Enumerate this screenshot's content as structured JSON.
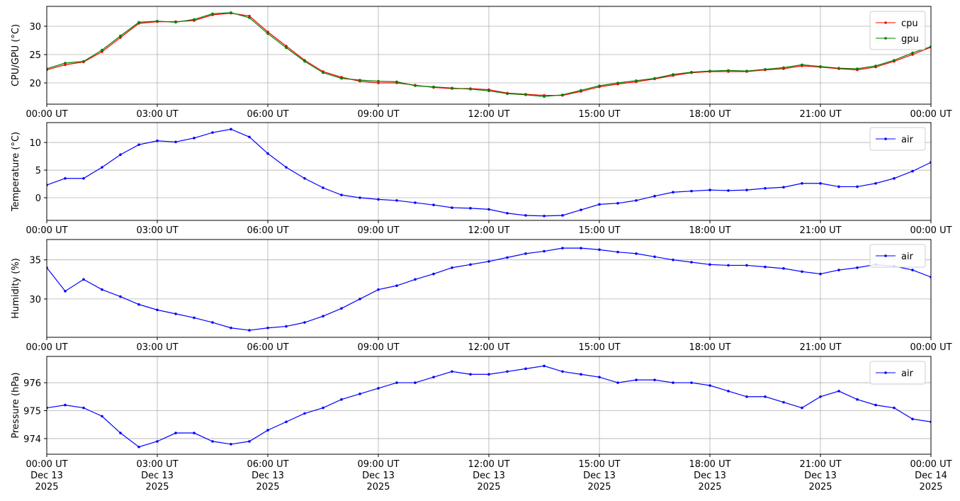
{
  "chart_data": [
    {
      "type": "line",
      "ylabel": "CPU/GPU (°C)",
      "x": [
        0,
        0.5,
        1,
        1.5,
        2,
        2.5,
        3,
        3.5,
        4,
        4.5,
        5,
        5.5,
        6,
        6.5,
        7,
        7.5,
        8,
        8.5,
        9,
        9.5,
        10,
        10.5,
        11,
        11.5,
        12,
        12.5,
        13,
        13.5,
        14,
        14.5,
        15,
        15.5,
        16,
        16.5,
        17,
        17.5,
        18,
        18.5,
        19,
        19.5,
        20,
        20.5,
        21,
        21.5,
        22,
        22.5,
        23,
        23.5,
        24
      ],
      "xlim": [
        0,
        24
      ],
      "xticks": [
        {
          "value": 0,
          "label": "00:00 UT"
        },
        {
          "value": 3,
          "label": "03:00 UT"
        },
        {
          "value": 6,
          "label": "06:00 UT"
        },
        {
          "value": 9,
          "label": "09:00 UT"
        },
        {
          "value": 12,
          "label": "12:00 UT"
        },
        {
          "value": 15,
          "label": "15:00 UT"
        },
        {
          "value": 18,
          "label": "18:00 UT"
        },
        {
          "value": 21,
          "label": "21:00 UT"
        },
        {
          "value": 24,
          "label": "00:00 UT"
        }
      ],
      "ylim": [
        16.25,
        33.5
      ],
      "yticks": [
        20,
        25,
        30
      ],
      "grid": true,
      "legend": "upper right",
      "series": [
        {
          "name": "cpu",
          "color": "#ff0000",
          "values": [
            22.3,
            23.2,
            23.7,
            25.5,
            28,
            30.5,
            30.8,
            30.8,
            31,
            32,
            32.3,
            31.8,
            29,
            26.5,
            24,
            22,
            21,
            20.3,
            20,
            20,
            19.6,
            19.2,
            19,
            19,
            18.8,
            18.2,
            18,
            17.8,
            17.8,
            18.5,
            19.3,
            19.8,
            20.2,
            20.7,
            21.3,
            21.8,
            22,
            22,
            22,
            22.3,
            22.5,
            23,
            22.8,
            22.5,
            22.3,
            22.8,
            23.8,
            25,
            26.3
          ]
        },
        {
          "name": "gpu",
          "color": "#008000",
          "values": [
            22.5,
            23.5,
            23.8,
            25.8,
            28.3,
            30.7,
            30.9,
            30.7,
            31.2,
            32.2,
            32.4,
            31.5,
            28.7,
            26.2,
            23.8,
            21.8,
            20.8,
            20.5,
            20.3,
            20.2,
            19.5,
            19.3,
            19.1,
            18.9,
            18.6,
            18.1,
            17.9,
            17.6,
            17.9,
            18.7,
            19.5,
            20,
            20.4,
            20.8,
            21.5,
            21.9,
            22.1,
            22.2,
            22.1,
            22.4,
            22.7,
            23.2,
            22.9,
            22.6,
            22.5,
            23,
            24,
            25.3,
            26.4
          ]
        }
      ]
    },
    {
      "type": "line",
      "ylabel": "Temperature (°C)",
      "x": [
        0,
        0.5,
        1,
        1.5,
        2,
        2.5,
        3,
        3.5,
        4,
        4.5,
        5,
        5.5,
        6,
        6.5,
        7,
        7.5,
        8,
        8.5,
        9,
        9.5,
        10,
        10.5,
        11,
        11.5,
        12,
        12.5,
        13,
        13.5,
        14,
        14.5,
        15,
        15.5,
        16,
        16.5,
        17,
        17.5,
        18,
        18.5,
        19,
        19.5,
        20,
        20.5,
        21,
        21.5,
        22,
        22.5,
        23,
        23.5,
        24
      ],
      "xlim": [
        0,
        24
      ],
      "xticks": [
        {
          "value": 0,
          "label": "00:00 UT"
        },
        {
          "value": 3,
          "label": "03:00 UT"
        },
        {
          "value": 6,
          "label": "06:00 UT"
        },
        {
          "value": 9,
          "label": "09:00 UT"
        },
        {
          "value": 12,
          "label": "12:00 UT"
        },
        {
          "value": 15,
          "label": "15:00 UT"
        },
        {
          "value": 18,
          "label": "18:00 UT"
        },
        {
          "value": 21,
          "label": "21:00 UT"
        },
        {
          "value": 24,
          "label": "00:00 UT"
        }
      ],
      "ylim": [
        -4.1,
        13.6
      ],
      "yticks": [
        0,
        5,
        10
      ],
      "grid": true,
      "legend": "upper right",
      "series": [
        {
          "name": "air",
          "color": "#0000ff",
          "values": [
            2.3,
            3.5,
            3.5,
            5.5,
            7.8,
            9.6,
            10.3,
            10.1,
            10.8,
            11.8,
            12.4,
            11,
            8,
            5.5,
            3.5,
            1.8,
            0.5,
            0,
            -0.3,
            -0.5,
            -0.9,
            -1.3,
            -1.8,
            -1.9,
            -2.1,
            -2.8,
            -3.2,
            -3.3,
            -3.2,
            -2.2,
            -1.2,
            -1,
            -0.5,
            0.3,
            1,
            1.2,
            1.4,
            1.3,
            1.4,
            1.7,
            1.9,
            2.6,
            2.6,
            2,
            2,
            2.6,
            3.5,
            4.8,
            6.4
          ]
        }
      ]
    },
    {
      "type": "line",
      "ylabel": "Humidity (%)",
      "x": [
        0,
        0.5,
        1,
        1.5,
        2,
        2.5,
        3,
        3.5,
        4,
        4.5,
        5,
        5.5,
        6,
        6.5,
        7,
        7.5,
        8,
        8.5,
        9,
        9.5,
        10,
        10.5,
        11,
        11.5,
        12,
        12.5,
        13,
        13.5,
        14,
        14.5,
        15,
        15.5,
        16,
        16.5,
        17,
        17.5,
        18,
        18.5,
        19,
        19.5,
        20,
        20.5,
        21,
        21.5,
        22,
        22.5,
        23,
        23.5,
        24
      ],
      "xlim": [
        0,
        24
      ],
      "xticks": [
        {
          "value": 0,
          "label": "00:00 UT"
        },
        {
          "value": 3,
          "label": "03:00 UT"
        },
        {
          "value": 6,
          "label": "06:00 UT"
        },
        {
          "value": 9,
          "label": "09:00 UT"
        },
        {
          "value": 12,
          "label": "12:00 UT"
        },
        {
          "value": 15,
          "label": "15:00 UT"
        },
        {
          "value": 18,
          "label": "18:00 UT"
        },
        {
          "value": 21,
          "label": "21:00 UT"
        },
        {
          "value": 24,
          "label": "00:00 UT"
        }
      ],
      "ylim": [
        25.1,
        37.6
      ],
      "yticks": [
        30,
        35
      ],
      "grid": true,
      "legend": "upper right",
      "series": [
        {
          "name": "air",
          "color": "#0000ff",
          "values": [
            34,
            31,
            32.5,
            31.2,
            30.3,
            29.3,
            28.6,
            28.1,
            27.6,
            27,
            26.3,
            26,
            26.3,
            26.5,
            27,
            27.8,
            28.8,
            30,
            31.2,
            31.7,
            32.5,
            33.2,
            34,
            34.4,
            34.8,
            35.3,
            35.8,
            36.1,
            36.5,
            36.5,
            36.3,
            36,
            35.8,
            35.4,
            35,
            34.7,
            34.4,
            34.3,
            34.3,
            34.1,
            33.9,
            33.5,
            33.2,
            33.7,
            34,
            34.4,
            34.2,
            33.7,
            32.8
          ]
        }
      ]
    },
    {
      "type": "line",
      "ylabel": "Pressure (hPa)",
      "x": [
        0,
        0.5,
        1,
        1.5,
        2,
        2.5,
        3,
        3.5,
        4,
        4.5,
        5,
        5.5,
        6,
        6.5,
        7,
        7.5,
        8,
        8.5,
        9,
        9.5,
        10,
        10.5,
        11,
        11.5,
        12,
        12.5,
        13,
        13.5,
        14,
        14.5,
        15,
        15.5,
        16,
        16.5,
        17,
        17.5,
        18,
        18.5,
        19,
        19.5,
        20,
        20.5,
        21,
        21.5,
        22,
        22.5,
        23,
        23.5,
        24
      ],
      "xlim": [
        0,
        24
      ],
      "xticks": [
        {
          "value": 0,
          "label": "00:00 UT\nDec 13\n2025"
        },
        {
          "value": 3,
          "label": "03:00 UT\nDec 13\n2025"
        },
        {
          "value": 6,
          "label": "06:00 UT\nDec 13\n2025"
        },
        {
          "value": 9,
          "label": "09:00 UT\nDec 13\n2025"
        },
        {
          "value": 12,
          "label": "12:00 UT\nDec 13\n2025"
        },
        {
          "value": 15,
          "label": "15:00 UT\nDec 13\n2025"
        },
        {
          "value": 18,
          "label": "18:00 UT\nDec 13\n2025"
        },
        {
          "value": 21,
          "label": "21:00 UT\nDec 13\n2025"
        },
        {
          "value": 24,
          "label": "00:00 UT\nDec 14\n2025"
        }
      ],
      "ylim": [
        973.44,
        976.94
      ],
      "yticks": [
        974,
        975,
        976
      ],
      "grid": true,
      "legend": "upper right",
      "series": [
        {
          "name": "air",
          "color": "#0000ff",
          "values": [
            975.1,
            975.2,
            975.1,
            974.8,
            974.2,
            973.7,
            973.9,
            974.2,
            974.2,
            973.9,
            973.8,
            973.9,
            974.3,
            974.6,
            974.9,
            975.1,
            975.4,
            975.6,
            975.8,
            976,
            976,
            976.2,
            976.4,
            976.3,
            976.3,
            976.4,
            976.5,
            976.6,
            976.4,
            976.3,
            976.2,
            976,
            976.1,
            976.1,
            976,
            976,
            975.9,
            975.7,
            975.5,
            975.5,
            975.3,
            975.1,
            975.5,
            975.7,
            975.4,
            975.2,
            975.1,
            974.7,
            974.6
          ]
        }
      ]
    }
  ]
}
